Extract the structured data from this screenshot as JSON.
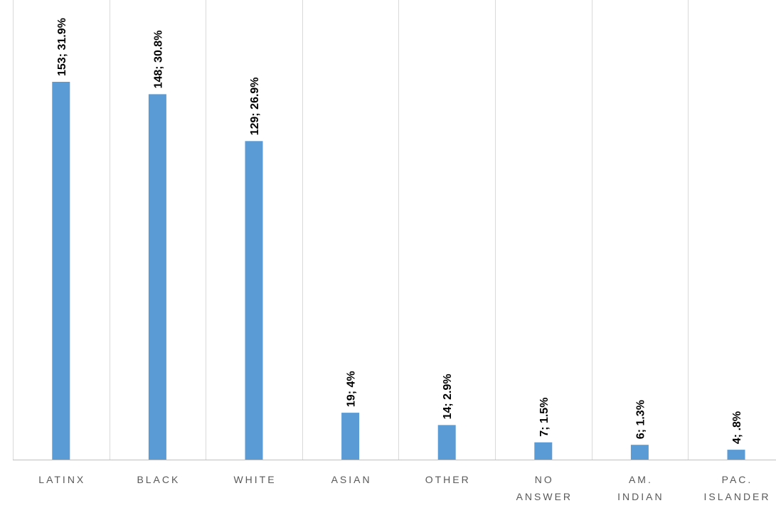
{
  "chart_data": {
    "type": "bar",
    "categories": [
      [
        "LATINX"
      ],
      [
        "BLACK"
      ],
      [
        "WHITE"
      ],
      [
        "ASIAN"
      ],
      [
        "OTHER"
      ],
      [
        "NO",
        "ANSWER"
      ],
      [
        "AM.",
        "INDIAN"
      ],
      [
        "PAC.",
        "ISLANDER"
      ]
    ],
    "values": [
      153,
      148,
      129,
      19,
      14,
      7,
      6,
      4
    ],
    "data_labels": [
      "153; 31.9%",
      "148; 30.8%",
      "129; 26.9%",
      "19; 4%",
      "14; 2.9%",
      "7; 1.5%",
      "6; 1.3%",
      "4; .8%"
    ],
    "title": "",
    "xlabel": "",
    "ylabel": "",
    "ylim": [
      0,
      153
    ],
    "grid": "vertical category separators",
    "legend": "none",
    "colors": {
      "bar": "#5b9bd5",
      "grid": "#d9d9d9",
      "axis": "#bfbfbf",
      "tick_text": "#595959"
    }
  }
}
